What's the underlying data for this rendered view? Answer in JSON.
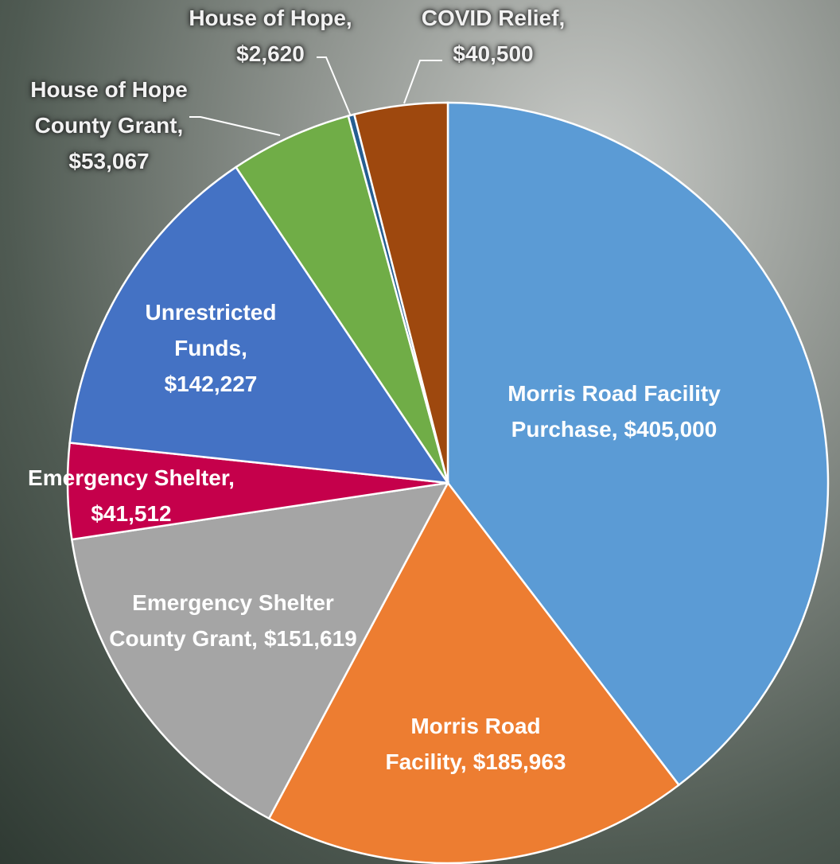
{
  "chart_data": {
    "type": "pie",
    "categories": [
      "Morris Road Facility Purchase,",
      "Morris Road Facility,",
      "Emergency Shelter County Grant,",
      "Emergency Shelter,",
      "Unrestricted Funds,",
      "House of Hope County Grant,",
      "House of Hope,",
      "COVID Relief,"
    ],
    "values": [
      405000,
      185963,
      151619,
      41512,
      142227,
      53067,
      2620,
      40500
    ],
    "value_labels": [
      "$405,000",
      "$185,963",
      "$151,619",
      "$41,512",
      "$142,227",
      "$53,067",
      "$2,620",
      "$40,500"
    ],
    "colors": [
      "#5b9bd5",
      "#ed7d31",
      "#a5a5a5",
      "#c5004b",
      "#4472c4",
      "#70ad47",
      "#255e91",
      "#9e480e"
    ]
  }
}
